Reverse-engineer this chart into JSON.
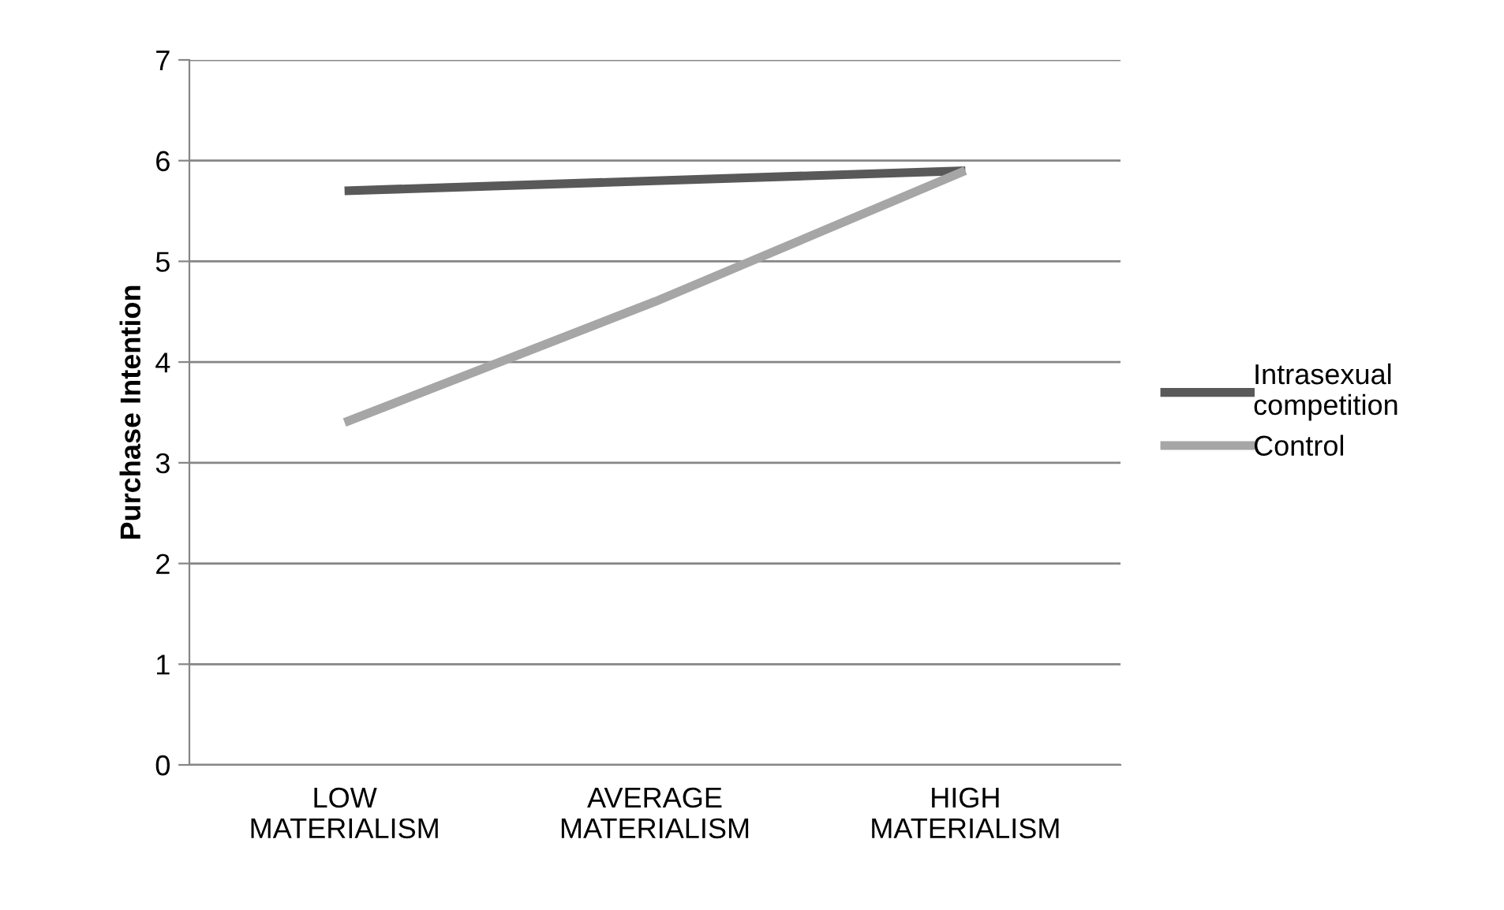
{
  "chart_data": {
    "type": "line",
    "ylabel": "Purchase Intention",
    "categories": [
      "LOW\nMATERIALISM",
      "AVERAGE\nMATERIALISM",
      "HIGH\nMATERIALISM"
    ],
    "series": [
      {
        "name": "Intrasexual\ncompetition",
        "color": "#595959",
        "values": [
          5.7,
          5.8,
          5.9
        ]
      },
      {
        "name": "Control",
        "color": "#a6a6a6",
        "values": [
          3.4,
          4.6,
          5.9
        ]
      }
    ],
    "ylim": [
      0,
      7
    ],
    "yticks": [
      0,
      1,
      2,
      3,
      4,
      5,
      6,
      7
    ],
    "grid": "y",
    "legend": "right",
    "marker": "none",
    "line_style": "solid"
  }
}
